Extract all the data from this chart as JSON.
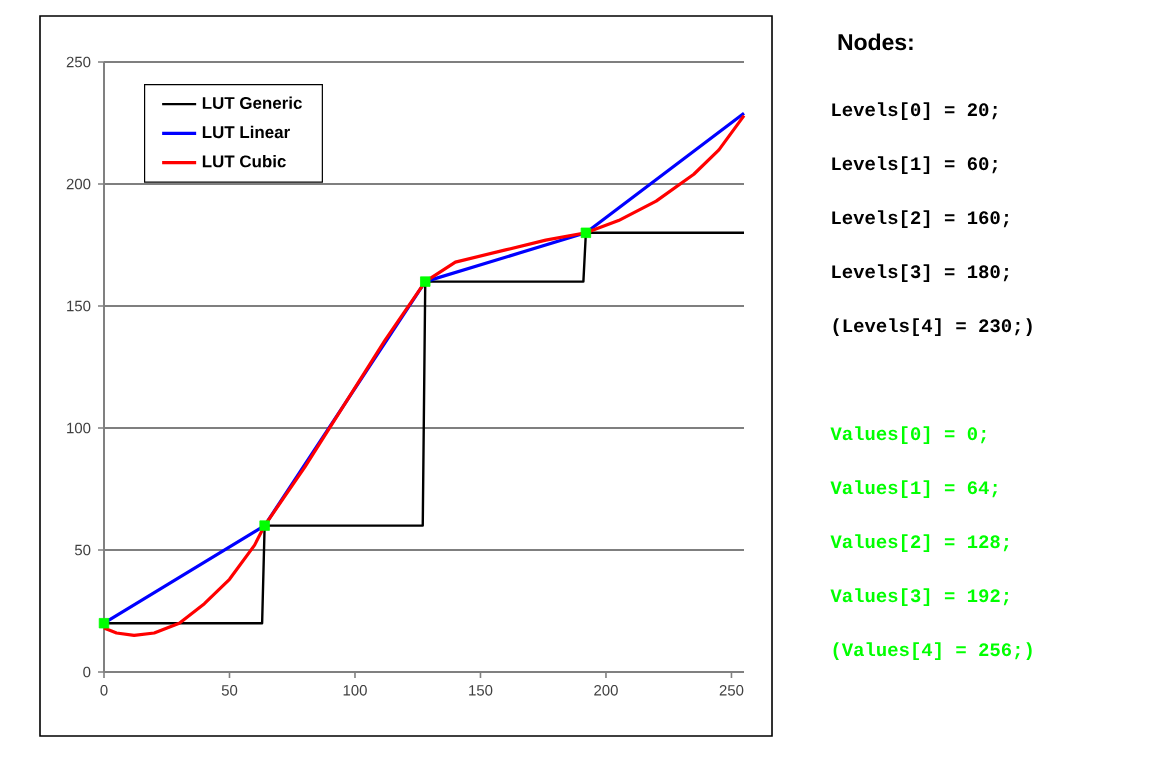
{
  "chart_data": {
    "type": "line",
    "xlim": [
      0,
      255
    ],
    "xticks": [
      0,
      50,
      100,
      150,
      200,
      250
    ],
    "ylim": [
      0,
      250
    ],
    "yticks": [
      0,
      50,
      100,
      150,
      200,
      250
    ],
    "grid": "y",
    "legend": "top left",
    "series": [
      {
        "name": "LUT Generic",
        "color": "#000000",
        "x": [
          0,
          63,
          64,
          127,
          128,
          191,
          192,
          255
        ],
        "values": [
          20,
          20,
          60,
          60,
          160,
          160,
          180,
          180
        ]
      },
      {
        "name": "LUT Linear",
        "color": "#0000ff",
        "x": [
          0,
          64,
          128,
          192,
          255
        ],
        "values": [
          20,
          60,
          160,
          180,
          229
        ]
      },
      {
        "name": "LUT Cubic",
        "color": "#ff0000",
        "x": [
          0,
          5,
          12,
          20,
          30,
          40,
          50,
          60,
          64,
          80,
          96,
          112,
          128,
          140,
          160,
          176,
          192,
          205,
          220,
          235,
          245,
          255
        ],
        "values": [
          18,
          16,
          15,
          16,
          20,
          28,
          38,
          52,
          60,
          84,
          110,
          136,
          160,
          168,
          173,
          177,
          180,
          185,
          193,
          204,
          214,
          228
        ]
      },
      {
        "type": "scatter",
        "marker": "square",
        "color": "#00ff00",
        "x": [
          0,
          64,
          128,
          192
        ],
        "values": [
          20,
          60,
          160,
          180
        ]
      }
    ],
    "annotations": [
      "Nodes:",
      "Levels[0] = 20;",
      "Levels[1] = 60;",
      "Levels[2] = 160;",
      "Levels[3] = 180;",
      "(Levels[4] = 230;)",
      "Values[0] = 0;",
      "Values[1] = 64;",
      "Values[2] = 128;",
      "Values[3] = 192;",
      "(Values[4] = 256;)"
    ]
  }
}
